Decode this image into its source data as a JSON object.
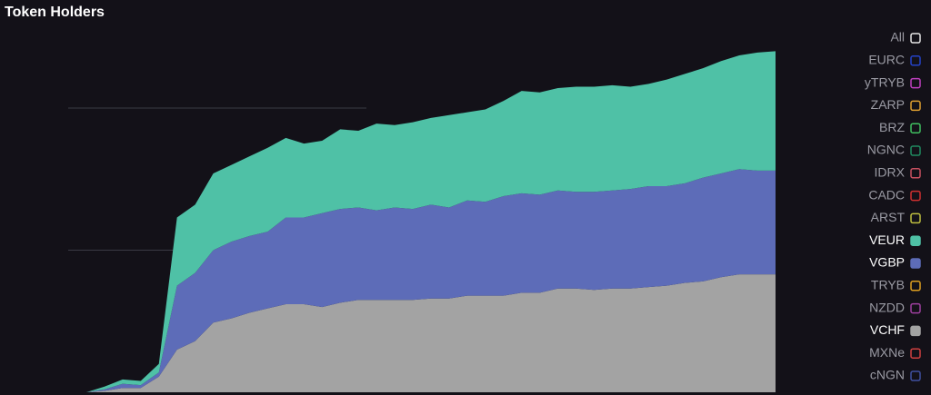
{
  "chart_data": {
    "type": "stacked_area",
    "title": "Token Holders",
    "categories": [
      null,
      null,
      null,
      null,
      null,
      null,
      null,
      null,
      null,
      null,
      null,
      null,
      null,
      null,
      null,
      null,
      null,
      null,
      null,
      null,
      null,
      null,
      null,
      null,
      null,
      null,
      null,
      null,
      null,
      null,
      null,
      null,
      null,
      null,
      null,
      null,
      null,
      null,
      null,
      null
    ],
    "ylim": [
      0,
      2.76
    ],
    "grid_lines": [
      1,
      2
    ],
    "grid": true,
    "series": [
      {
        "name": "VCHF",
        "color": "#a3a3a3",
        "values": [
          0,
          0,
          0.01,
          0.03,
          0.03,
          0.11,
          0.3,
          0.36,
          0.49,
          0.52,
          0.56,
          0.59,
          0.62,
          0.62,
          0.6,
          0.63,
          0.65,
          0.65,
          0.65,
          0.65,
          0.66,
          0.66,
          0.68,
          0.68,
          0.68,
          0.7,
          0.7,
          0.73,
          0.73,
          0.72,
          0.73,
          0.73,
          0.74,
          0.75,
          0.77,
          0.78,
          0.81,
          0.83,
          0.83,
          0.83
        ]
      },
      {
        "name": "VGBP",
        "color": "#5d6cb8",
        "values": [
          0,
          0,
          0.01,
          0.03,
          0.02,
          0.03,
          0.45,
          0.48,
          0.51,
          0.54,
          0.54,
          0.54,
          0.61,
          0.61,
          0.66,
          0.66,
          0.65,
          0.63,
          0.65,
          0.64,
          0.66,
          0.64,
          0.67,
          0.66,
          0.7,
          0.7,
          0.69,
          0.69,
          0.68,
          0.69,
          0.69,
          0.7,
          0.71,
          0.7,
          0.7,
          0.73,
          0.73,
          0.74,
          0.73,
          0.73
        ]
      },
      {
        "name": "VEUR",
        "color": "#4fc1a6",
        "values": [
          0,
          0,
          0.02,
          0.03,
          0.03,
          0.06,
          0.48,
          0.48,
          0.54,
          0.54,
          0.56,
          0.59,
          0.56,
          0.52,
          0.51,
          0.56,
          0.54,
          0.61,
          0.58,
          0.61,
          0.61,
          0.65,
          0.62,
          0.65,
          0.67,
          0.72,
          0.72,
          0.72,
          0.74,
          0.74,
          0.74,
          0.72,
          0.72,
          0.75,
          0.77,
          0.77,
          0.79,
          0.8,
          0.83,
          0.84
        ]
      }
    ],
    "legend": [
      {
        "name": "All",
        "color": "#e6e6e6",
        "active": false
      },
      {
        "name": "EURC",
        "color": "#2442c8",
        "active": false
      },
      {
        "name": "yTRYB",
        "color": "#c040c0",
        "active": false
      },
      {
        "name": "ZARP",
        "color": "#e0a030",
        "active": false
      },
      {
        "name": "BRZ",
        "color": "#40c060",
        "active": false
      },
      {
        "name": "NGNC",
        "color": "#208a60",
        "active": false
      },
      {
        "name": "IDRX",
        "color": "#c85060",
        "active": false
      },
      {
        "name": "CADC",
        "color": "#d03030",
        "active": false
      },
      {
        "name": "ARST",
        "color": "#c0c040",
        "active": false
      },
      {
        "name": "VEUR",
        "color": "#4fc1a6",
        "active": true
      },
      {
        "name": "VGBP",
        "color": "#5d6cb8",
        "active": true
      },
      {
        "name": "TRYB",
        "color": "#e0a020",
        "active": false
      },
      {
        "name": "NZDD",
        "color": "#a040a0",
        "active": false
      },
      {
        "name": "VCHF",
        "color": "#a3a3a3",
        "active": true
      },
      {
        "name": "MXNe",
        "color": "#d04040",
        "active": false
      },
      {
        "name": "cNGN",
        "color": "#4050a0",
        "active": false
      }
    ]
  }
}
